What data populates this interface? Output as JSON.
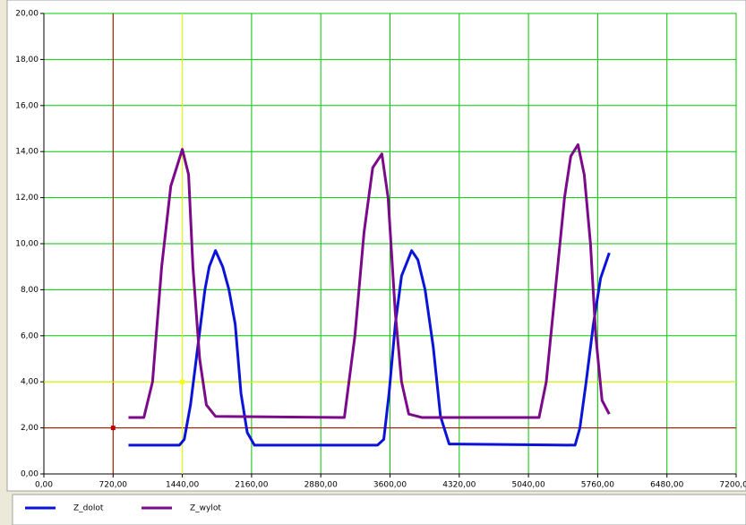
{
  "chart_data": {
    "type": "line",
    "series": [
      {
        "name": "Z_dolot",
        "color": "#0a14d8",
        "x": [
          880,
          1410,
          1460,
          1525,
          1600,
          1675,
          1720,
          1785,
          1860,
          1925,
          1990,
          2050,
          2115,
          2190,
          3470,
          3535,
          3590,
          3655,
          3720,
          3825,
          3890,
          3965,
          4050,
          4125,
          4215,
          5525,
          5575,
          5640,
          5715,
          5790,
          5880
        ],
        "values": [
          1.25,
          1.25,
          1.5,
          3,
          5.5,
          8,
          9,
          9.7,
          9,
          8,
          6.5,
          3.5,
          1.8,
          1.25,
          1.25,
          1.5,
          3.5,
          6.5,
          8.6,
          9.7,
          9.3,
          8,
          5.5,
          2.5,
          1.3,
          1.25,
          2,
          4,
          6.5,
          8.5,
          9.6
        ]
      },
      {
        "name": "Z_wylot",
        "color": "#7b0a8a",
        "x": [
          880,
          1040,
          1130,
          1225,
          1320,
          1440,
          1505,
          1550,
          1620,
          1690,
          1785,
          3125,
          3235,
          3330,
          3420,
          3515,
          3580,
          3655,
          3720,
          3795,
          3935,
          5150,
          5225,
          5320,
          5415,
          5480,
          5555,
          5620,
          5685,
          5740,
          5805,
          5880
        ],
        "values": [
          2.45,
          2.45,
          4,
          9,
          12.5,
          14.1,
          13,
          9,
          5,
          3,
          2.5,
          2.45,
          6,
          10.5,
          13.3,
          13.9,
          12,
          7,
          4,
          2.6,
          2.45,
          2.45,
          4,
          8,
          12,
          13.8,
          14.3,
          13,
          10,
          6,
          3.2,
          2.6
        ]
      }
    ],
    "xlim": [
      0,
      7200
    ],
    "xticks": [
      {
        "value": 0,
        "label": "0,00"
      },
      {
        "value": 720,
        "label": "720,00"
      },
      {
        "value": 1440,
        "label": "1440,00"
      },
      {
        "value": 2160,
        "label": "2160,00"
      },
      {
        "value": 2880,
        "label": "2880,00"
      },
      {
        "value": 3600,
        "label": "3600,00"
      },
      {
        "value": 4320,
        "label": "4320,00"
      },
      {
        "value": 5040,
        "label": "5040,00"
      },
      {
        "value": 5760,
        "label": "5760,00"
      },
      {
        "value": 6480,
        "label": "6480,00"
      },
      {
        "value": 7200,
        "label": "7200,00"
      }
    ],
    "ylim": [
      0,
      20
    ],
    "yticks": [
      {
        "value": 0,
        "label": "0,00"
      },
      {
        "value": 2,
        "label": "2,00"
      },
      {
        "value": 4,
        "label": "4,00"
      },
      {
        "value": 6,
        "label": "6,00"
      },
      {
        "value": 8,
        "label": "8,00"
      },
      {
        "value": 10,
        "label": "10,00"
      },
      {
        "value": 12,
        "label": "12,00"
      },
      {
        "value": 14,
        "label": "14,00"
      },
      {
        "value": 16,
        "label": "16,00"
      },
      {
        "value": 18,
        "label": "18,00"
      },
      {
        "value": 20,
        "label": "20,00"
      }
    ],
    "grid": true,
    "grid_color": "#00c800",
    "cursors": [
      {
        "x": 720,
        "y": 2,
        "color": "#c00000"
      },
      {
        "x": 1440,
        "y": 4,
        "color": "#ffff00"
      }
    ],
    "legend": "bottom"
  }
}
